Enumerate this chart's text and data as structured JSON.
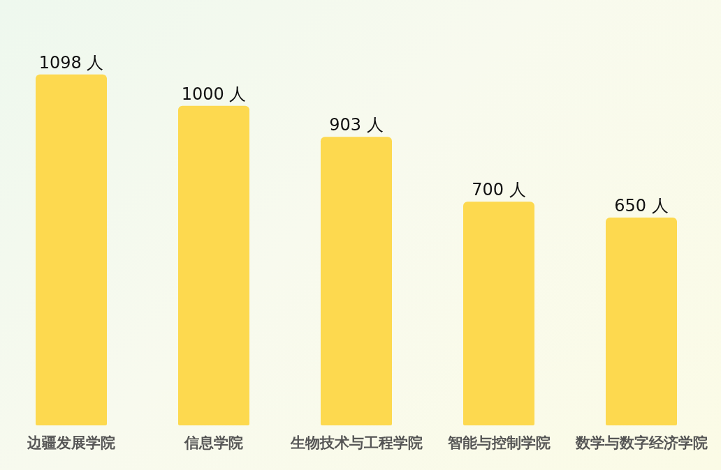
{
  "chart_data": {
    "type": "bar",
    "categories": [
      "边疆发展学院",
      "信息学院",
      "生物技术与工程学院",
      "智能与控制学院",
      "数学与数字经济学院"
    ],
    "values": [
      1098,
      1000,
      903,
      700,
      650
    ],
    "value_labels": [
      "1098 人",
      "1000 人",
      "903 人",
      "700 人",
      "650 人"
    ],
    "color": "#fdd94f"
  }
}
